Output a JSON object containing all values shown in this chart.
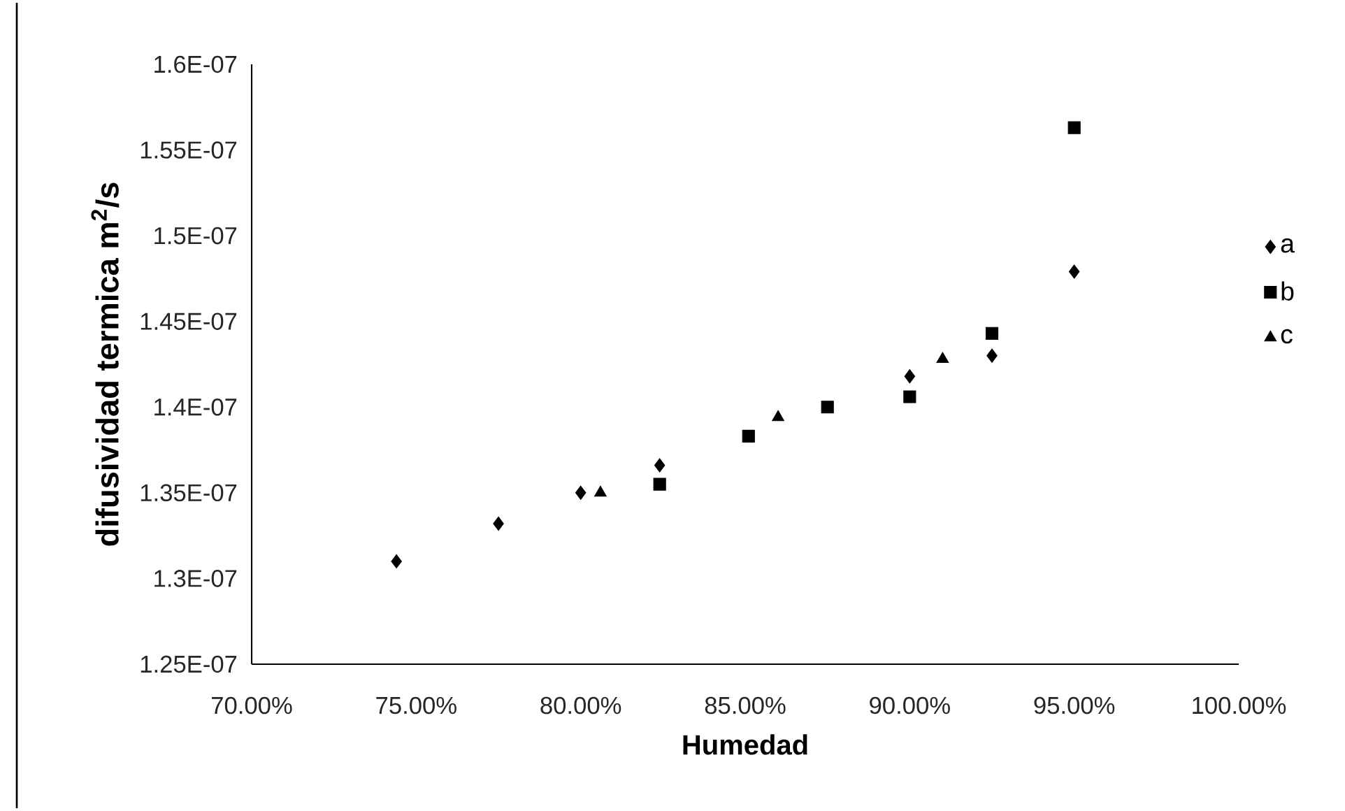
{
  "chart_data": {
    "type": "scatter",
    "xlabel": "Humedad",
    "ylabel": "difusividad termica m$^{2}$/s",
    "xlim": [
      70,
      100
    ],
    "xticks": [
      {
        "value": 70,
        "label": "70.00%"
      },
      {
        "value": 75,
        "label": "75.00%"
      },
      {
        "value": 80,
        "label": "80.00%"
      },
      {
        "value": 85,
        "label": "85.00%"
      },
      {
        "value": 90,
        "label": "90.00%"
      },
      {
        "value": 95,
        "label": "95.00%"
      },
      {
        "value": 100,
        "label": "100.00%"
      }
    ],
    "ylim": [
      1.25e-07,
      1.6e-07
    ],
    "yticks": [
      {
        "value": 1.25e-07,
        "label": "1.25E-07"
      },
      {
        "value": 1.3e-07,
        "label": "1.3E-07"
      },
      {
        "value": 1.35e-07,
        "label": "1.35E-07"
      },
      {
        "value": 1.4e-07,
        "label": "1.4E-07"
      },
      {
        "value": 1.45e-07,
        "label": "1.45E-07"
      },
      {
        "value": 1.5e-07,
        "label": "1.5E-07"
      },
      {
        "value": 1.55e-07,
        "label": "1.55E-07"
      },
      {
        "value": 1.6e-07,
        "label": "1.6E-07"
      }
    ],
    "grid": false,
    "legend": "right",
    "series": [
      {
        "name": "a",
        "color": "#000000",
        "marker": "diamond",
        "x": [
          74.4,
          77.5,
          80.0,
          82.4,
          87.5,
          90.0,
          92.5,
          95.0
        ],
        "values": [
          1.31e-07,
          1.332e-07,
          1.35e-07,
          1.366e-07,
          null,
          1.418e-07,
          1.43e-07,
          1.479e-07
        ]
      },
      {
        "name": "b",
        "color": "#000000",
        "marker": "square",
        "x": [
          82.4,
          85.1,
          87.5,
          90.0,
          92.5,
          95.0
        ],
        "values": [
          1.355e-07,
          1.383e-07,
          1.4e-07,
          1.406e-07,
          1.443e-07,
          1.563e-07
        ]
      },
      {
        "name": "c",
        "color": "#000000",
        "marker": "triangle",
        "x": [
          80.6,
          86.0,
          91.0
        ],
        "values": [
          1.35e-07,
          1.394e-07,
          1.428e-07
        ]
      }
    ]
  }
}
